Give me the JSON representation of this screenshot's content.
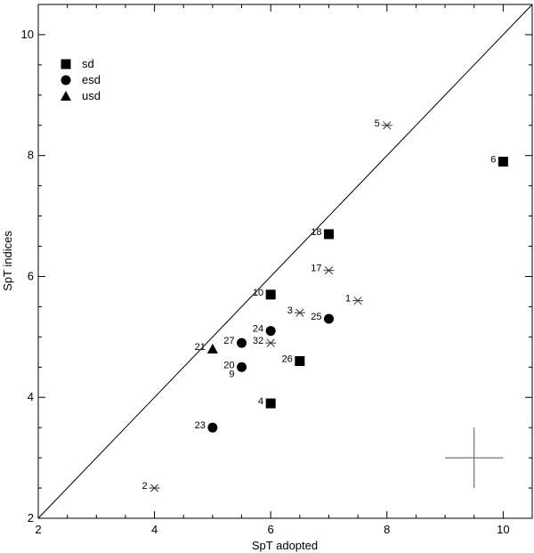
{
  "chart_data": {
    "type": "scatter",
    "xlabel": "SpT adopted",
    "ylabel": "SpT indices",
    "xlim": [
      2,
      10.5
    ],
    "ylim": [
      2,
      10.5
    ],
    "xticks": [
      2,
      4,
      6,
      8,
      10
    ],
    "yticks": [
      2,
      4,
      6,
      8,
      10
    ],
    "grid": false,
    "legend_position": "top-left",
    "one_to_one_line": true,
    "error_bar": {
      "x": 9.5,
      "y": 3.0,
      "xerr": 0.5,
      "yerr": 0.5
    },
    "legend": [
      {
        "label": "sd",
        "marker": "square"
      },
      {
        "label": "esd",
        "marker": "circle"
      },
      {
        "label": "usd",
        "marker": "triangle"
      }
    ],
    "series": [
      {
        "marker": "square",
        "points": [
          {
            "label": "6",
            "x": 10.0,
            "y": 7.9
          },
          {
            "label": "18",
            "x": 7.0,
            "y": 6.7
          },
          {
            "label": "10",
            "x": 6.0,
            "y": 5.7
          },
          {
            "label": "26",
            "x": 6.5,
            "y": 4.6
          },
          {
            "label": "4",
            "x": 6.0,
            "y": 3.9
          }
        ]
      },
      {
        "marker": "circle",
        "points": [
          {
            "label": "25",
            "x": 7.0,
            "y": 5.3
          },
          {
            "label": "24",
            "x": 6.0,
            "y": 5.1
          },
          {
            "label": "27",
            "x": 5.5,
            "y": 4.9
          },
          {
            "label": "20",
            "x": 5.5,
            "y": 4.5
          },
          {
            "label": "23",
            "x": 5.0,
            "y": 3.5
          }
        ]
      },
      {
        "marker": "triangle",
        "points": [
          {
            "label": "21",
            "x": 5.0,
            "y": 4.8
          }
        ]
      },
      {
        "marker": "asterisk",
        "points": [
          {
            "label": "5",
            "x": 8.0,
            "y": 8.5
          },
          {
            "label": "17",
            "x": 7.0,
            "y": 6.1
          },
          {
            "label": "1",
            "x": 7.5,
            "y": 5.6
          },
          {
            "label": "3",
            "x": 6.5,
            "y": 5.4
          },
          {
            "label": "32",
            "x": 6.0,
            "y": 4.9
          },
          {
            "label": "2",
            "x": 4.0,
            "y": 2.5
          }
        ]
      }
    ],
    "extra_labels": [
      {
        "label": "9",
        "x": 5.5,
        "y": 4.5
      }
    ]
  }
}
